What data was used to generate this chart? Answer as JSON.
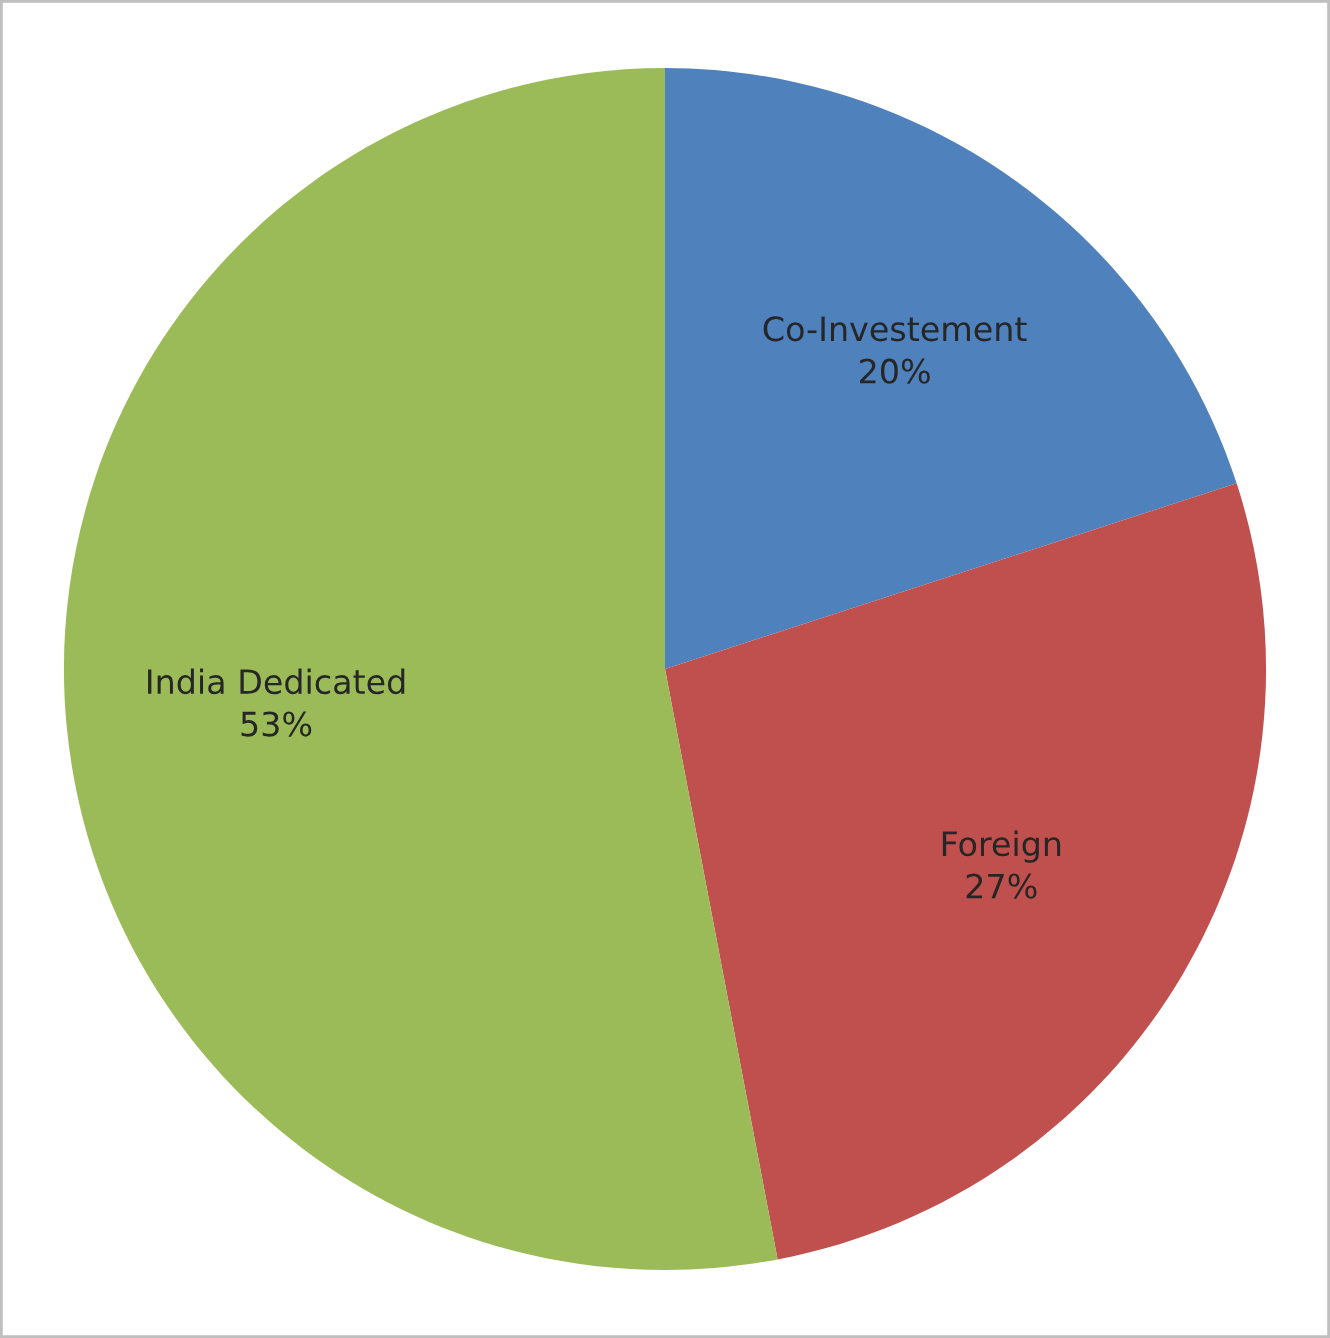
{
  "chart_data": {
    "type": "pie",
    "categories": [
      "Co-Investement",
      "Foreign",
      "India Dedicated"
    ],
    "values": [
      20,
      27,
      53
    ],
    "colors": [
      "#4f81bd",
      "#c0504d",
      "#9bbb59"
    ],
    "value_labels": [
      "20%",
      "27%",
      "53%"
    ],
    "legend": false
  }
}
